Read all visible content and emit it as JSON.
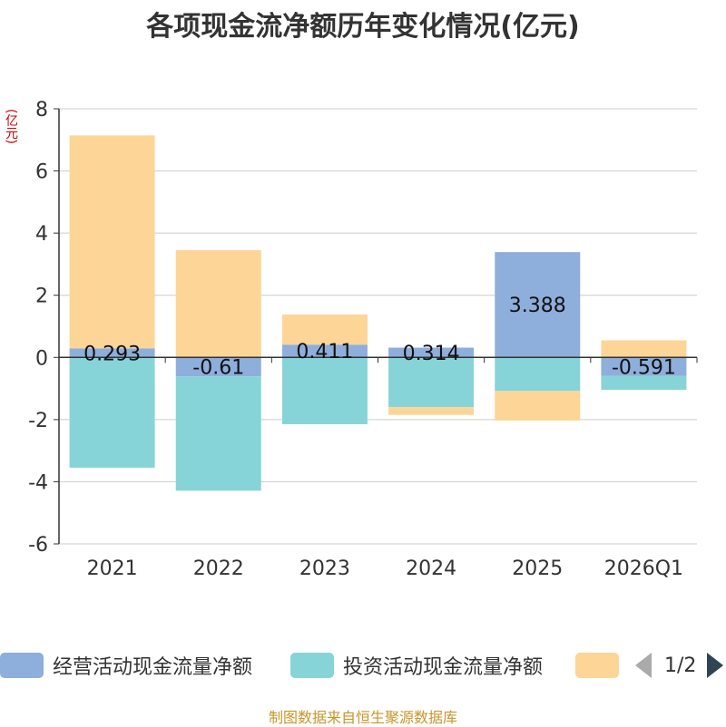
{
  "title": "各项现金流净额历年变化情况(亿元)",
  "unit_label": "(亿元)",
  "source": "制图数据来自恒生聚源数据库",
  "legend": {
    "items": [
      {
        "label": "经营活动现金流量净额",
        "color": "#8eaedb"
      },
      {
        "label": "投资活动现金流量净额",
        "color": "#87d4d8"
      },
      {
        "label": "",
        "color": "#fdd597"
      }
    ],
    "page": "1/2"
  },
  "chart_data": {
    "type": "bar",
    "stacked": true,
    "categories": [
      "2021",
      "2022",
      "2023",
      "2024",
      "2025",
      "2026Q1"
    ],
    "ylim": [
      -6,
      8
    ],
    "yticks": [
      -6,
      -4,
      -2,
      0,
      2,
      4,
      6,
      8
    ],
    "series": [
      {
        "name": "经营活动现金流量净额",
        "color": "#8eaedb",
        "values": [
          0.293,
          -0.61,
          0.411,
          0.314,
          3.388,
          -0.591
        ],
        "labels": [
          "0.293",
          "-0.61",
          "0.411",
          "0.314",
          "3.388",
          "-0.591"
        ]
      },
      {
        "name": "投资活动现金流量净额",
        "color": "#87d4d8",
        "values": [
          -3.55,
          -3.68,
          -2.15,
          -1.6,
          -1.08,
          -0.45
        ]
      },
      {
        "name": "",
        "color": "#fdd597",
        "values": [
          6.85,
          3.45,
          0.97,
          -0.25,
          -0.95,
          0.55
        ]
      }
    ]
  }
}
